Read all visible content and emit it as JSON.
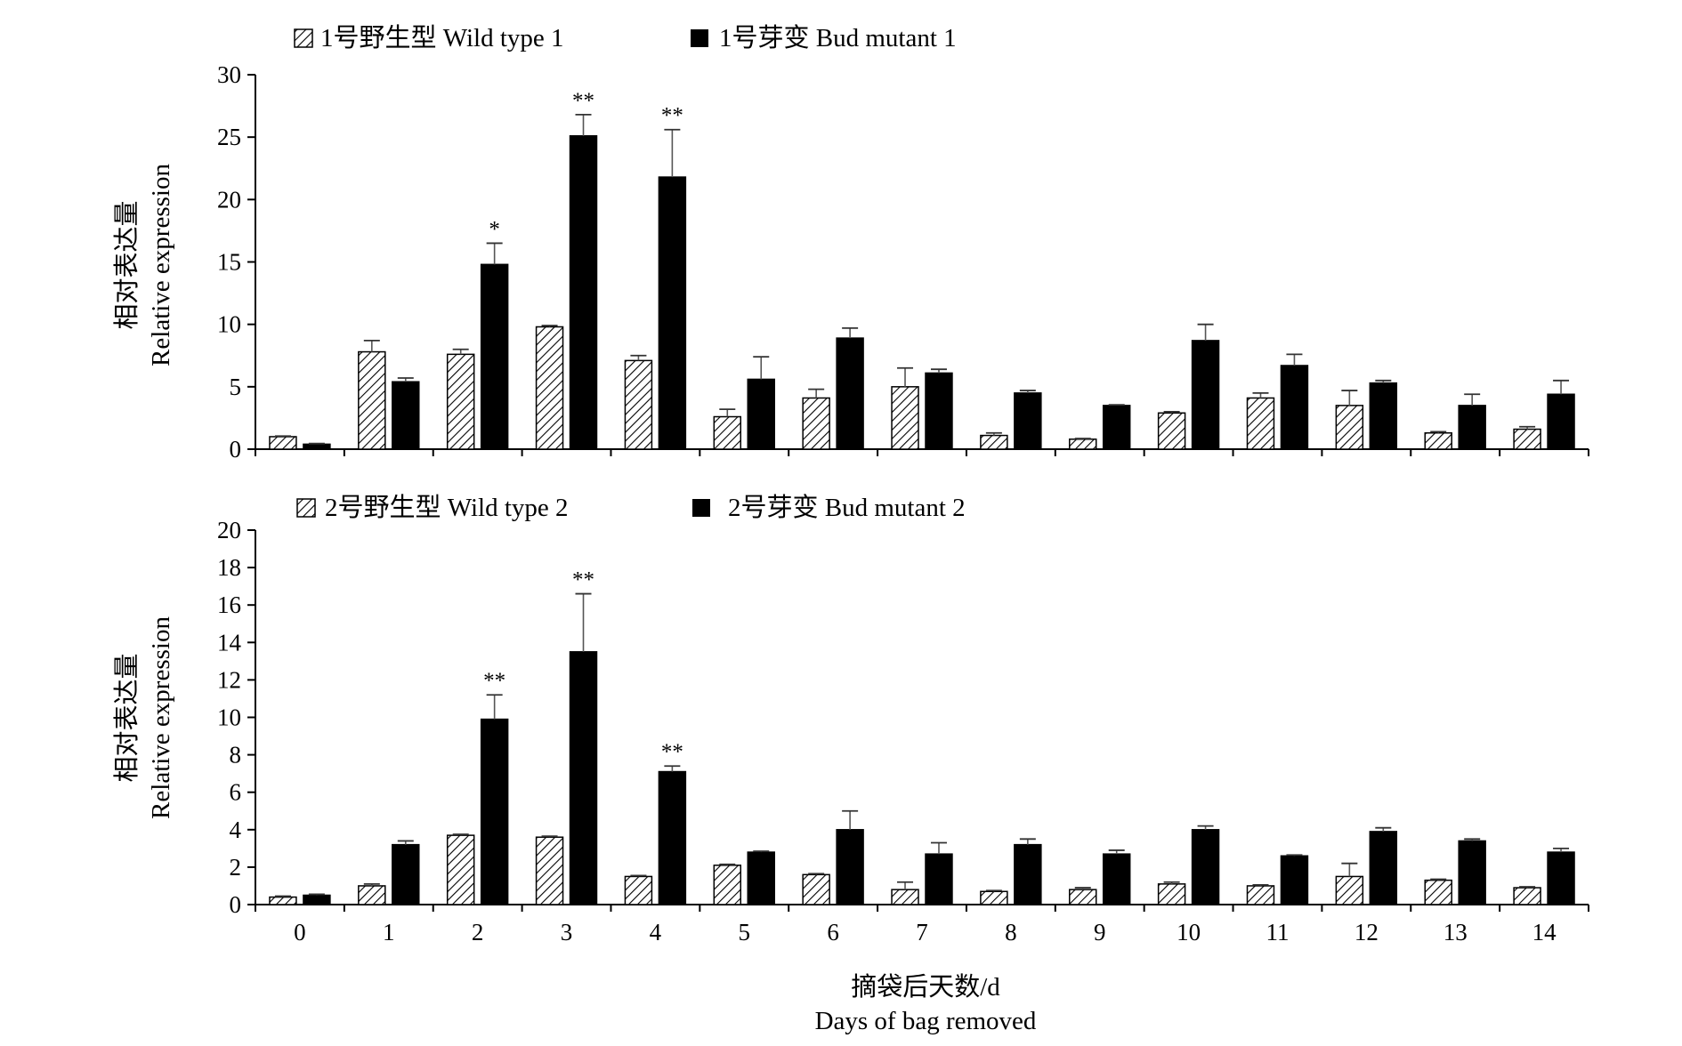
{
  "chart_data": [
    {
      "type": "bar",
      "categories": [
        "0",
        "1",
        "2",
        "3",
        "4",
        "5",
        "6",
        "7",
        "8",
        "9",
        "10",
        "11",
        "12",
        "13",
        "14"
      ],
      "series": [
        {
          "name": "1号野生型 Wild type 1",
          "pattern": "hatched",
          "values": [
            1.0,
            7.8,
            7.6,
            9.8,
            7.1,
            2.6,
            4.1,
            5.0,
            1.1,
            0.8,
            2.9,
            4.1,
            3.5,
            1.3,
            1.6
          ],
          "errors": [
            0.05,
            0.9,
            0.4,
            0.1,
            0.4,
            0.6,
            0.7,
            1.5,
            0.2,
            0.05,
            0.1,
            0.4,
            1.2,
            0.1,
            0.2
          ]
        },
        {
          "name": "1号芽变 Bud mutant 1",
          "pattern": "solid",
          "values": [
            0.4,
            5.4,
            14.8,
            25.1,
            21.8,
            5.6,
            8.9,
            6.1,
            4.5,
            3.5,
            8.7,
            6.7,
            5.3,
            3.5,
            4.4
          ],
          "errors": [
            0.05,
            0.3,
            1.7,
            1.7,
            3.8,
            1.8,
            0.8,
            0.3,
            0.2,
            0.05,
            1.3,
            0.9,
            0.2,
            0.9,
            1.1
          ]
        }
      ],
      "significance": [
        {
          "category": "2",
          "label": "*"
        },
        {
          "category": "3",
          "label": "**"
        },
        {
          "category": "4",
          "label": "**"
        }
      ],
      "ylabel_cn": "相对表达量",
      "ylabel_en": "Relative expression",
      "ylim": [
        0,
        30
      ],
      "yticks": [
        0,
        5,
        10,
        15,
        20,
        25,
        30
      ],
      "legend": "top-left",
      "grid": false
    },
    {
      "type": "bar",
      "categories": [
        "0",
        "1",
        "2",
        "3",
        "4",
        "5",
        "6",
        "7",
        "8",
        "9",
        "10",
        "11",
        "12",
        "13",
        "14"
      ],
      "series": [
        {
          "name": "2号野生型 Wild type 2",
          "pattern": "hatched",
          "values": [
            0.4,
            1.0,
            3.7,
            3.6,
            1.5,
            2.1,
            1.6,
            0.8,
            0.7,
            0.8,
            1.1,
            1.0,
            1.5,
            1.3,
            0.9
          ],
          "errors": [
            0.05,
            0.1,
            0.05,
            0.05,
            0.05,
            0.05,
            0.05,
            0.4,
            0.05,
            0.1,
            0.1,
            0.05,
            0.7,
            0.05,
            0.05
          ]
        },
        {
          "name": "2号芽变 Bud mutant 2",
          "pattern": "solid",
          "values": [
            0.5,
            3.2,
            9.9,
            13.5,
            7.1,
            2.8,
            4.0,
            2.7,
            3.2,
            2.7,
            4.0,
            2.6,
            3.9,
            3.4,
            2.8
          ],
          "errors": [
            0.05,
            0.2,
            1.3,
            3.1,
            0.3,
            0.05,
            1.0,
            0.6,
            0.3,
            0.2,
            0.2,
            0.05,
            0.2,
            0.1,
            0.2
          ]
        }
      ],
      "significance": [
        {
          "category": "2",
          "label": "**"
        },
        {
          "category": "3",
          "label": "**"
        },
        {
          "category": "4",
          "label": "**"
        }
      ],
      "ylabel_cn": "相对表达量",
      "ylabel_en": "Relative expression",
      "ylim": [
        0,
        20
      ],
      "yticks": [
        0,
        2,
        4,
        6,
        8,
        10,
        12,
        14,
        16,
        18,
        20
      ],
      "legend": "top-left",
      "grid": false
    }
  ],
  "shared_xlabel_cn": "摘袋后天数/d",
  "shared_xlabel_en": "Days of bag removed"
}
